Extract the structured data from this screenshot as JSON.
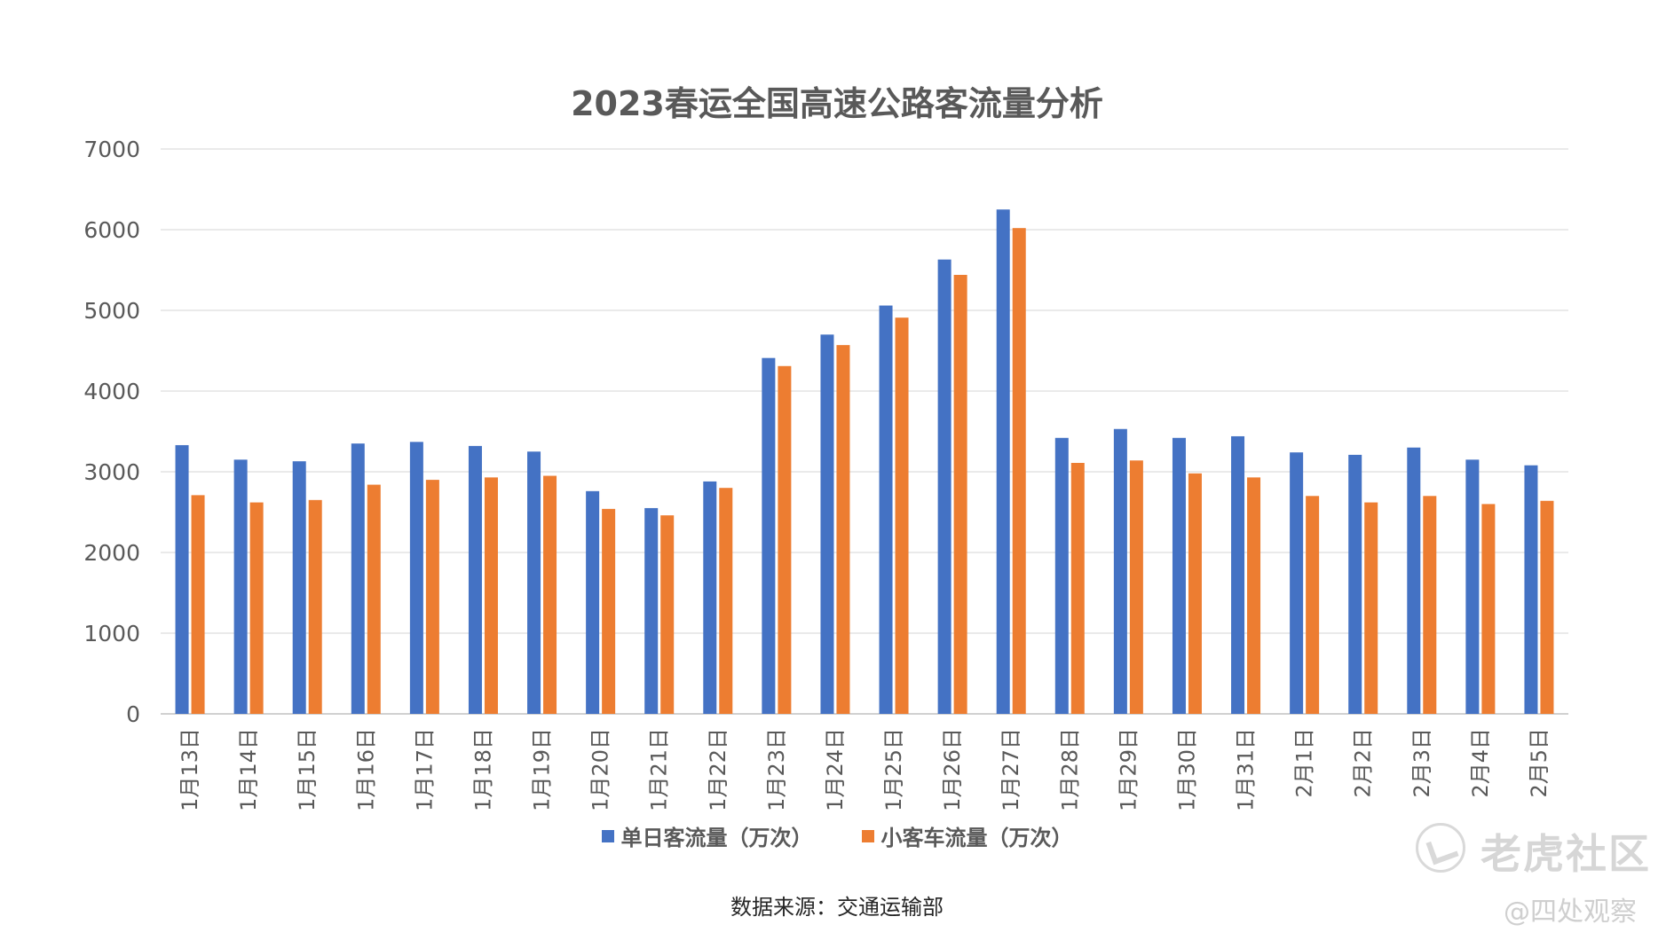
{
  "colors": {
    "series1": "#4472C4",
    "series2": "#ED7D31",
    "grid": "#E3E3E3",
    "axis_text": "#595959",
    "axis_line": "#D0D0D0"
  },
  "source_text": "数据来源：交通运输部",
  "watermark": {
    "brand": "老虎社区",
    "handle": "@四处观察",
    "icon": "tiger-logo-icon"
  },
  "chart_data": {
    "type": "bar",
    "title": "2023春运全国高速公路客流量分析",
    "xlabel": "",
    "ylabel": "",
    "ylim": [
      0,
      7000
    ],
    "yticks": [
      "0",
      "1000",
      "2000",
      "3000",
      "4000",
      "5000",
      "6000",
      "7000"
    ],
    "grid": true,
    "legend_position": "bottom",
    "categories": [
      "1月13日",
      "1月14日",
      "1月15日",
      "1月16日",
      "1月17日",
      "1月18日",
      "1月19日",
      "1月20日",
      "1月21日",
      "1月22日",
      "1月23日",
      "1月24日",
      "1月25日",
      "1月26日",
      "1月27日",
      "1月28日",
      "1月29日",
      "1月30日",
      "1月31日",
      "2月1日",
      "2月2日",
      "2月3日",
      "2月4日",
      "2月5日"
    ],
    "series": [
      {
        "name": "单日客流量（万次）",
        "values": [
          3330,
          3150,
          3130,
          3350,
          3370,
          3320,
          3250,
          2760,
          2550,
          2880,
          4410,
          4700,
          5060,
          5630,
          6250,
          3420,
          3530,
          3420,
          3440,
          3240,
          3210,
          3300,
          3150,
          3080
        ]
      },
      {
        "name": "小客车流量（万次）",
        "values": [
          2710,
          2620,
          2650,
          2840,
          2900,
          2930,
          2950,
          2540,
          2460,
          2800,
          4310,
          4570,
          4910,
          5440,
          6020,
          3110,
          3140,
          2980,
          2930,
          2700,
          2620,
          2700,
          2600,
          2640
        ]
      }
    ]
  }
}
